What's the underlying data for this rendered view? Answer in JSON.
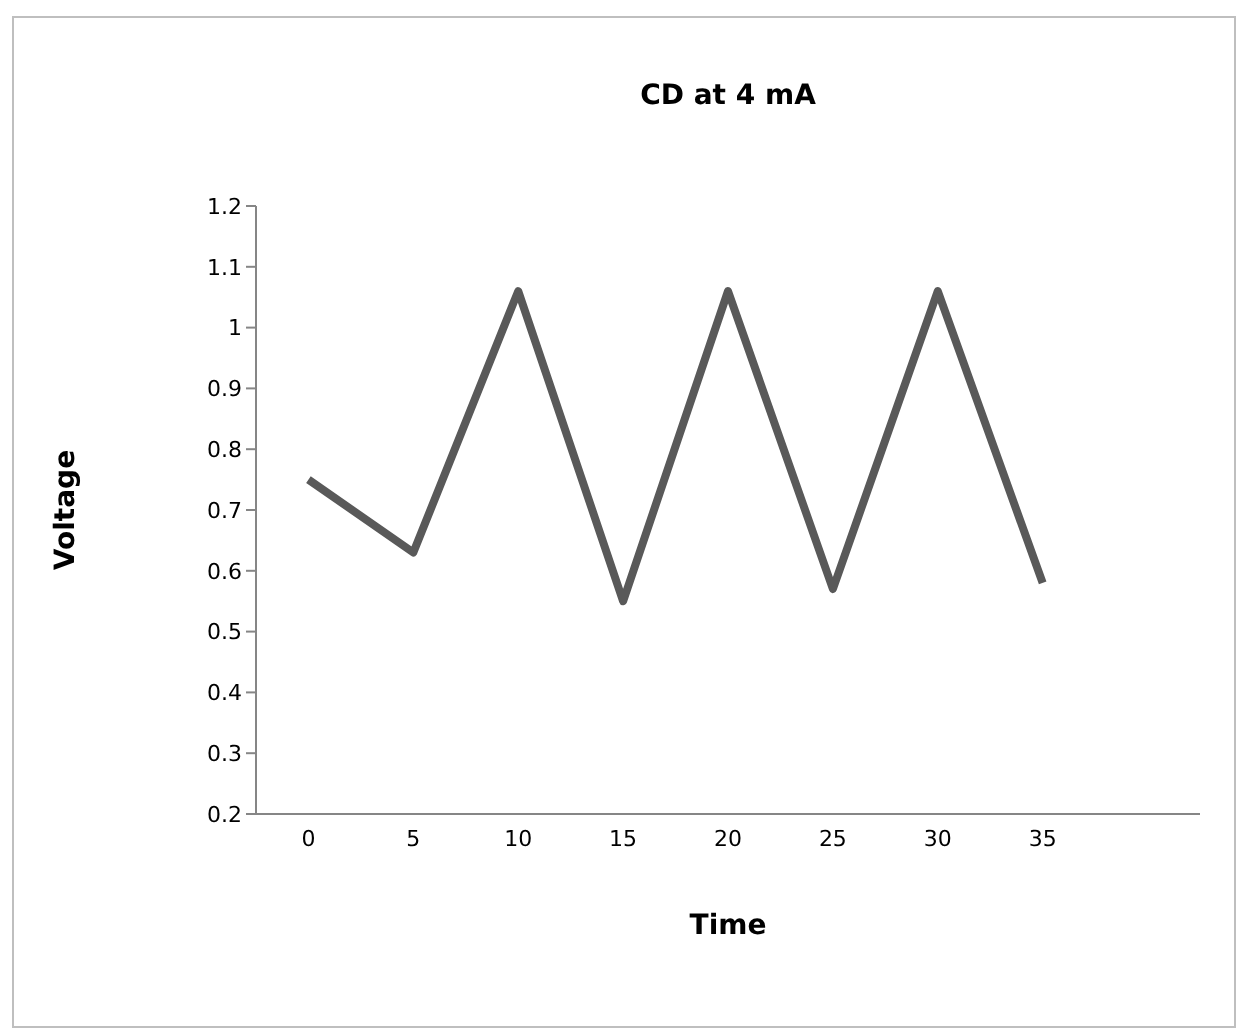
{
  "chart_data": {
    "type": "line",
    "title": "CD at 4 mA",
    "xlabel": "Time",
    "ylabel": "Voltage",
    "categories": [
      "0",
      "5",
      "10",
      "15",
      "20",
      "25",
      "30",
      "35",
      null
    ],
    "series": [
      {
        "color": "#595959",
        "values": [
          0.75,
          0.63,
          1.06,
          0.55,
          1.06,
          0.57,
          1.06,
          0.58,
          null
        ]
      }
    ],
    "ylim": [
      0.2,
      1.2
    ],
    "yticks": [
      0.2,
      0.3,
      0.4,
      0.5,
      0.6,
      0.7,
      0.8,
      0.9,
      1,
      1.1,
      1.2
    ]
  }
}
